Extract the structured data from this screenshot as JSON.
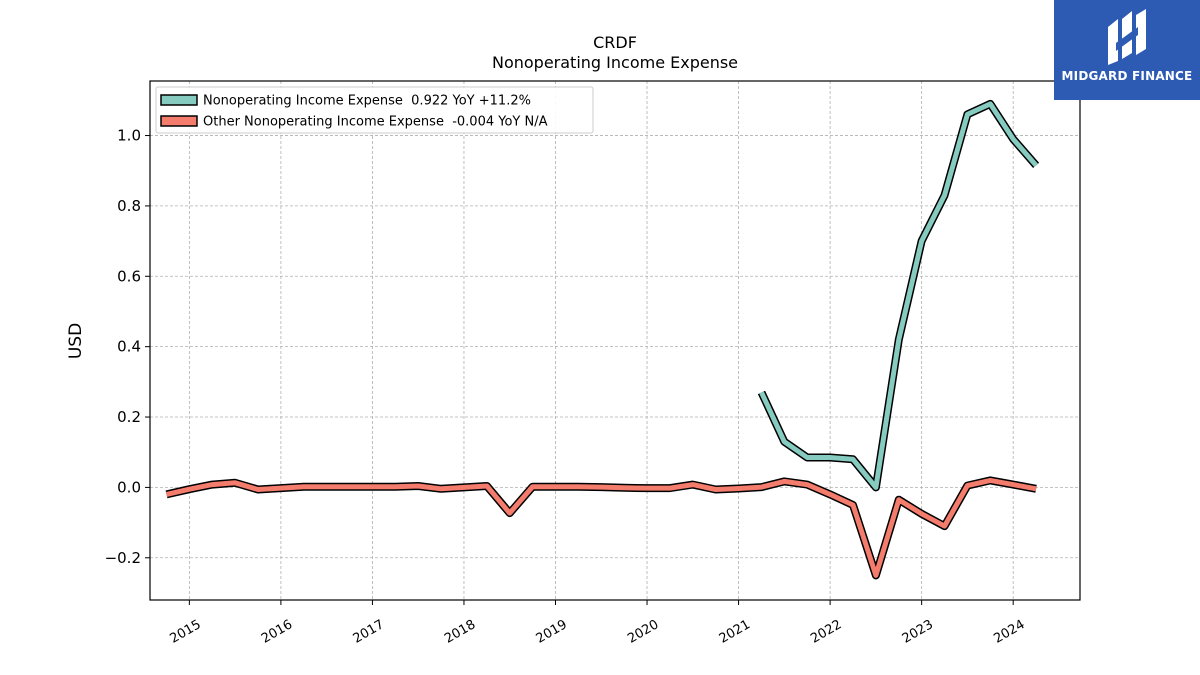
{
  "chart_data": {
    "type": "line",
    "title": "CRDF",
    "subtitle": "Nonoperating Income Expense",
    "ylabel": "USD",
    "xlabel": "",
    "ylim": [
      -0.32,
      1.155
    ],
    "xlim": [
      2014.57,
      2024.73
    ],
    "yticks": [
      "−0.2",
      "0.0",
      "0.2",
      "0.4",
      "0.6",
      "0.8",
      "1.0"
    ],
    "ytick_values": [
      -0.2,
      0.0,
      0.2,
      0.4,
      0.6,
      0.8,
      1.0
    ],
    "xticks": [
      "2015",
      "2016",
      "2017",
      "2018",
      "2019",
      "2020",
      "2021",
      "2022",
      "2023",
      "2024"
    ],
    "xtick_values": [
      2015,
      2016,
      2017,
      2018,
      2019,
      2020,
      2021,
      2022,
      2023,
      2024
    ],
    "grid": true,
    "legend_position": "top-left",
    "legend": [
      "Nonoperating Income Expense  0.922 YoY +11.2%",
      "Other Nonoperating Income Expense  -0.004 YoY N/A"
    ],
    "series": [
      {
        "name": "Nonoperating Income Expense",
        "color": "#86cbbf",
        "x": [
          2021.25,
          2021.5,
          2021.75,
          2022.0,
          2022.25,
          2022.5,
          2022.75,
          2023.0,
          2023.25,
          2023.5,
          2023.75,
          2024.0,
          2024.25
        ],
        "y": [
          0.27,
          0.13,
          0.085,
          0.085,
          0.08,
          0.0,
          0.42,
          0.7,
          0.83,
          1.06,
          1.09,
          0.99,
          0.915
        ]
      },
      {
        "name": "Other Nonoperating Income Expense",
        "color": "#f47c6c",
        "x": [
          2014.75,
          2015.0,
          2015.25,
          2015.5,
          2015.75,
          2016.0,
          2016.25,
          2016.5,
          2016.75,
          2017.0,
          2017.25,
          2017.5,
          2017.75,
          2018.0,
          2018.25,
          2018.5,
          2018.75,
          2019.0,
          2019.25,
          2019.5,
          2019.75,
          2020.0,
          2020.25,
          2020.5,
          2020.75,
          2021.0,
          2021.25,
          2021.5,
          2021.75,
          2022.0,
          2022.25,
          2022.5,
          2022.75,
          2023.0,
          2023.25,
          2023.5,
          2023.75,
          2024.0,
          2024.25
        ],
        "y": [
          -0.02,
          -0.005,
          0.008,
          0.013,
          -0.006,
          -0.002,
          0.002,
          0.002,
          0.002,
          0.002,
          0.002,
          0.004,
          -0.004,
          0.0,
          0.004,
          -0.073,
          0.002,
          0.002,
          0.002,
          0.001,
          -0.001,
          -0.002,
          -0.002,
          0.008,
          -0.006,
          -0.003,
          0.001,
          0.017,
          0.008,
          -0.02,
          -0.05,
          -0.25,
          -0.035,
          -0.075,
          -0.11,
          0.005,
          0.02,
          0.008,
          -0.004
        ]
      }
    ]
  },
  "logo": {
    "text": "MIDGARD FINANCE",
    "bg_color": "#2d5bb3"
  }
}
